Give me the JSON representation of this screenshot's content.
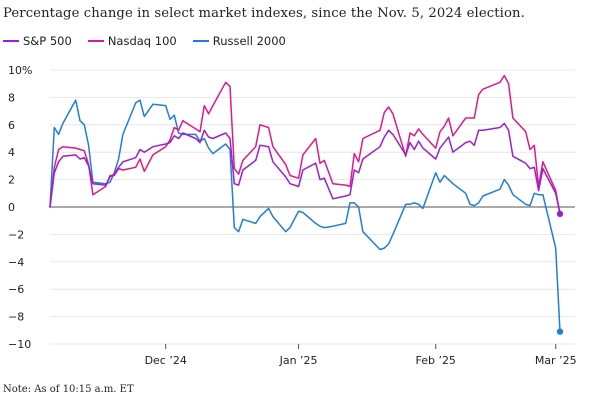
{
  "chart_data": {
    "type": "line",
    "title": "Percentage change in select market indexes, since the Nov. 5, 2024 election.",
    "note": "Note: As of 10:15 a.m. ET",
    "xlabel": "",
    "ylabel": "",
    "ylim": [
      -10,
      10
    ],
    "y_ticks": [
      -10,
      -8,
      -6,
      -4,
      -2,
      0,
      2,
      4,
      6,
      8,
      10
    ],
    "y_tick_labels": [
      "−10",
      "−8",
      "−6",
      "−4",
      "−2",
      "0",
      "2",
      "4",
      "6",
      "8",
      "10%"
    ],
    "x_ticks": [
      {
        "date": "2024-12-02",
        "label": "Dec ’24"
      },
      {
        "date": "2025-01-02",
        "label": "Jan ’25"
      },
      {
        "date": "2025-02-03",
        "label": "Feb ’25"
      },
      {
        "date": "2025-03-03",
        "label": "Mar ’25"
      }
    ],
    "x_range": [
      "2024-11-05",
      "2025-03-04"
    ],
    "grid": "horizontal",
    "legend_position": "top-left",
    "series": [
      {
        "name": "S&P 500",
        "color": "#9b1fd1",
        "end_marker": true,
        "values": [
          [
            "2024-11-05",
            0
          ],
          [
            "2024-11-06",
            2.5
          ],
          [
            "2024-11-07",
            3.3
          ],
          [
            "2024-11-08",
            3.7
          ],
          [
            "2024-11-11",
            3.8
          ],
          [
            "2024-11-12",
            3.5
          ],
          [
            "2024-11-13",
            3.6
          ],
          [
            "2024-11-14",
            3.0
          ],
          [
            "2024-11-15",
            1.7
          ],
          [
            "2024-11-18",
            1.6
          ],
          [
            "2024-11-19",
            2.2
          ],
          [
            "2024-11-20",
            2.4
          ],
          [
            "2024-11-21",
            2.9
          ],
          [
            "2024-11-22",
            3.3
          ],
          [
            "2024-11-25",
            3.6
          ],
          [
            "2024-11-26",
            4.2
          ],
          [
            "2024-11-27",
            4.0
          ],
          [
            "2024-11-29",
            4.4
          ],
          [
            "2024-12-02",
            4.6
          ],
          [
            "2024-12-03",
            4.7
          ],
          [
            "2024-12-04",
            5.2
          ],
          [
            "2024-12-05",
            5.0
          ],
          [
            "2024-12-06",
            5.4
          ],
          [
            "2024-12-09",
            5.0
          ],
          [
            "2024-12-10",
            4.7
          ],
          [
            "2024-12-11",
            5.6
          ],
          [
            "2024-12-12",
            5.1
          ],
          [
            "2024-12-13",
            5.0
          ],
          [
            "2024-12-16",
            5.4
          ],
          [
            "2024-12-17",
            5.0
          ],
          [
            "2024-12-18",
            1.7
          ],
          [
            "2024-12-19",
            1.6
          ],
          [
            "2024-12-20",
            2.7
          ],
          [
            "2024-12-23",
            3.4
          ],
          [
            "2024-12-24",
            4.5
          ],
          [
            "2024-12-26",
            4.4
          ],
          [
            "2024-12-27",
            3.3
          ],
          [
            "2024-12-30",
            2.2
          ],
          [
            "2024-12-31",
            1.7
          ],
          [
            "2025-01-02",
            1.5
          ],
          [
            "2025-01-03",
            2.7
          ],
          [
            "2025-01-06",
            3.2
          ],
          [
            "2025-01-07",
            2.0
          ],
          [
            "2025-01-08",
            2.1
          ],
          [
            "2025-01-10",
            0.6
          ],
          [
            "2025-01-13",
            0.8
          ],
          [
            "2025-01-14",
            0.9
          ],
          [
            "2025-01-15",
            2.7
          ],
          [
            "2025-01-16",
            2.5
          ],
          [
            "2025-01-17",
            3.5
          ],
          [
            "2025-01-21",
            4.4
          ],
          [
            "2025-01-22",
            5.1
          ],
          [
            "2025-01-23",
            5.6
          ],
          [
            "2025-01-24",
            5.3
          ],
          [
            "2025-01-27",
            3.8
          ],
          [
            "2025-01-28",
            4.7
          ],
          [
            "2025-01-29",
            4.2
          ],
          [
            "2025-01-30",
            4.8
          ],
          [
            "2025-01-31",
            4.3
          ],
          [
            "2025-02-03",
            3.5
          ],
          [
            "2025-02-04",
            4.3
          ],
          [
            "2025-02-05",
            4.7
          ],
          [
            "2025-02-06",
            5.1
          ],
          [
            "2025-02-07",
            4.0
          ],
          [
            "2025-02-10",
            4.7
          ],
          [
            "2025-02-11",
            4.8
          ],
          [
            "2025-02-12",
            4.5
          ],
          [
            "2025-02-13",
            5.6
          ],
          [
            "2025-02-14",
            5.6
          ],
          [
            "2025-02-18",
            5.8
          ],
          [
            "2025-02-19",
            6.1
          ],
          [
            "2025-02-20",
            5.6
          ],
          [
            "2025-02-21",
            3.7
          ],
          [
            "2025-02-24",
            3.2
          ],
          [
            "2025-02-25",
            2.8
          ],
          [
            "2025-02-26",
            2.9
          ],
          [
            "2025-02-27",
            1.2
          ],
          [
            "2025-02-28",
            2.8
          ],
          [
            "2025-03-03",
            1.0
          ],
          [
            "2025-03-04",
            -0.5
          ]
        ]
      },
      {
        "name": "Nasdaq 100",
        "color": "#e0188c",
        "end_marker": false,
        "values": [
          [
            "2024-11-05",
            0
          ],
          [
            "2024-11-06",
            2.9
          ],
          [
            "2024-11-07",
            4.2
          ],
          [
            "2024-11-08",
            4.4
          ],
          [
            "2024-11-11",
            4.3
          ],
          [
            "2024-11-12",
            4.2
          ],
          [
            "2024-11-13",
            4.1
          ],
          [
            "2024-11-14",
            3.1
          ],
          [
            "2024-11-15",
            0.9
          ],
          [
            "2024-11-18",
            1.5
          ],
          [
            "2024-11-19",
            2.3
          ],
          [
            "2024-11-20",
            2.3
          ],
          [
            "2024-11-21",
            2.8
          ],
          [
            "2024-11-22",
            2.7
          ],
          [
            "2024-11-25",
            2.9
          ],
          [
            "2024-11-26",
            3.5
          ],
          [
            "2024-11-27",
            2.6
          ],
          [
            "2024-11-29",
            3.8
          ],
          [
            "2024-12-02",
            4.4
          ],
          [
            "2024-12-03",
            4.9
          ],
          [
            "2024-12-04",
            5.8
          ],
          [
            "2024-12-05",
            5.6
          ],
          [
            "2024-12-06",
            6.3
          ],
          [
            "2024-12-09",
            5.7
          ],
          [
            "2024-12-10",
            5.5
          ],
          [
            "2024-12-11",
            7.4
          ],
          [
            "2024-12-12",
            6.8
          ],
          [
            "2024-12-13",
            7.4
          ],
          [
            "2024-12-16",
            9.1
          ],
          [
            "2024-12-17",
            8.8
          ],
          [
            "2024-12-18",
            2.8
          ],
          [
            "2024-12-19",
            2.4
          ],
          [
            "2024-12-20",
            3.4
          ],
          [
            "2024-12-23",
            4.4
          ],
          [
            "2024-12-24",
            6.0
          ],
          [
            "2024-12-26",
            5.8
          ],
          [
            "2024-12-27",
            4.4
          ],
          [
            "2024-12-30",
            3.1
          ],
          [
            "2024-12-31",
            2.3
          ],
          [
            "2025-01-02",
            2.1
          ],
          [
            "2025-01-03",
            3.8
          ],
          [
            "2025-01-06",
            5.0
          ],
          [
            "2025-01-07",
            3.2
          ],
          [
            "2025-01-08",
            3.4
          ],
          [
            "2025-01-10",
            1.7
          ],
          [
            "2025-01-13",
            1.6
          ],
          [
            "2025-01-14",
            1.5
          ],
          [
            "2025-01-15",
            3.9
          ],
          [
            "2025-01-16",
            3.3
          ],
          [
            "2025-01-17",
            5.0
          ],
          [
            "2025-01-21",
            5.6
          ],
          [
            "2025-01-22",
            6.9
          ],
          [
            "2025-01-23",
            7.3
          ],
          [
            "2025-01-24",
            6.8
          ],
          [
            "2025-01-27",
            3.7
          ],
          [
            "2025-01-28",
            5.4
          ],
          [
            "2025-01-29",
            5.2
          ],
          [
            "2025-01-30",
            5.7
          ],
          [
            "2025-01-31",
            5.3
          ],
          [
            "2025-02-03",
            4.3
          ],
          [
            "2025-02-04",
            5.5
          ],
          [
            "2025-02-05",
            5.9
          ],
          [
            "2025-02-06",
            6.5
          ],
          [
            "2025-02-07",
            5.2
          ],
          [
            "2025-02-10",
            6.5
          ],
          [
            "2025-02-11",
            6.5
          ],
          [
            "2025-02-12",
            6.5
          ],
          [
            "2025-02-13",
            8.2
          ],
          [
            "2025-02-14",
            8.6
          ],
          [
            "2025-02-18",
            9.1
          ],
          [
            "2025-02-19",
            9.6
          ],
          [
            "2025-02-20",
            9.0
          ],
          [
            "2025-02-21",
            6.5
          ],
          [
            "2025-02-24",
            5.5
          ],
          [
            "2025-02-25",
            4.2
          ],
          [
            "2025-02-26",
            4.5
          ],
          [
            "2025-02-27",
            1.5
          ],
          [
            "2025-02-28",
            3.3
          ],
          [
            "2025-03-03",
            1.2
          ],
          [
            "2025-03-04",
            -0.5
          ]
        ]
      },
      {
        "name": "Russell 2000",
        "color": "#1f7fd6",
        "end_marker": true,
        "values": [
          [
            "2024-11-05",
            0
          ],
          [
            "2024-11-06",
            5.8
          ],
          [
            "2024-11-07",
            5.3
          ],
          [
            "2024-11-08",
            6.1
          ],
          [
            "2024-11-11",
            7.8
          ],
          [
            "2024-11-12",
            6.3
          ],
          [
            "2024-11-13",
            6.0
          ],
          [
            "2024-11-14",
            4.5
          ],
          [
            "2024-11-15",
            1.8
          ],
          [
            "2024-11-18",
            1.7
          ],
          [
            "2024-11-19",
            1.8
          ],
          [
            "2024-11-20",
            2.5
          ],
          [
            "2024-11-21",
            3.5
          ],
          [
            "2024-11-22",
            5.3
          ],
          [
            "2024-11-25",
            7.6
          ],
          [
            "2024-11-26",
            7.8
          ],
          [
            "2024-11-27",
            6.6
          ],
          [
            "2024-11-29",
            7.5
          ],
          [
            "2024-12-02",
            7.4
          ],
          [
            "2024-12-03",
            6.4
          ],
          [
            "2024-12-04",
            6.7
          ],
          [
            "2024-12-05",
            5.4
          ],
          [
            "2024-12-06",
            5.3
          ],
          [
            "2024-12-09",
            5.3
          ],
          [
            "2024-12-10",
            4.8
          ],
          [
            "2024-12-11",
            5.0
          ],
          [
            "2024-12-12",
            4.3
          ],
          [
            "2024-12-13",
            3.9
          ],
          [
            "2024-12-16",
            4.6
          ],
          [
            "2024-12-17",
            4.2
          ],
          [
            "2024-12-18",
            -1.5
          ],
          [
            "2024-12-19",
            -1.8
          ],
          [
            "2024-12-20",
            -0.9
          ],
          [
            "2024-12-23",
            -1.2
          ],
          [
            "2024-12-24",
            -0.7
          ],
          [
            "2024-12-26",
            -0.1
          ],
          [
            "2024-12-27",
            -0.7
          ],
          [
            "2024-12-30",
            -1.8
          ],
          [
            "2024-12-31",
            -1.5
          ],
          [
            "2025-01-02",
            -0.3
          ],
          [
            "2025-01-03",
            -0.4
          ],
          [
            "2025-01-06",
            -1.2
          ],
          [
            "2025-01-07",
            -1.4
          ],
          [
            "2025-01-08",
            -1.5
          ],
          [
            "2025-01-10",
            -1.4
          ],
          [
            "2025-01-13",
            -1.2
          ],
          [
            "2025-01-14",
            0.3
          ],
          [
            "2025-01-15",
            0.3
          ],
          [
            "2025-01-16",
            0.0
          ],
          [
            "2025-01-17",
            -1.8
          ],
          [
            "2025-01-21",
            -3.1
          ],
          [
            "2025-01-22",
            -3.0
          ],
          [
            "2025-01-23",
            -2.7
          ],
          [
            "2025-01-24",
            -2.0
          ],
          [
            "2025-01-27",
            0.2
          ],
          [
            "2025-01-28",
            0.2
          ],
          [
            "2025-01-29",
            0.3
          ],
          [
            "2025-01-30",
            0.2
          ],
          [
            "2025-01-31",
            -0.1
          ],
          [
            "2025-02-03",
            2.5
          ],
          [
            "2025-02-04",
            1.8
          ],
          [
            "2025-02-05",
            2.3
          ],
          [
            "2025-02-06",
            2.0
          ],
          [
            "2025-02-07",
            1.7
          ],
          [
            "2025-02-10",
            1.0
          ],
          [
            "2025-02-11",
            0.2
          ],
          [
            "2025-02-12",
            0.1
          ],
          [
            "2025-02-13",
            0.3
          ],
          [
            "2025-02-14",
            0.8
          ],
          [
            "2025-02-18",
            1.3
          ],
          [
            "2025-02-19",
            2.0
          ],
          [
            "2025-02-20",
            1.6
          ],
          [
            "2025-02-21",
            0.9
          ],
          [
            "2025-02-24",
            0.2
          ],
          [
            "2025-02-25",
            0.1
          ],
          [
            "2025-02-26",
            1.0
          ],
          [
            "2025-02-27",
            0.9
          ],
          [
            "2025-02-28",
            0.9
          ],
          [
            "2025-03-03",
            -3.0
          ],
          [
            "2025-03-04",
            -9.1
          ]
        ]
      }
    ]
  }
}
